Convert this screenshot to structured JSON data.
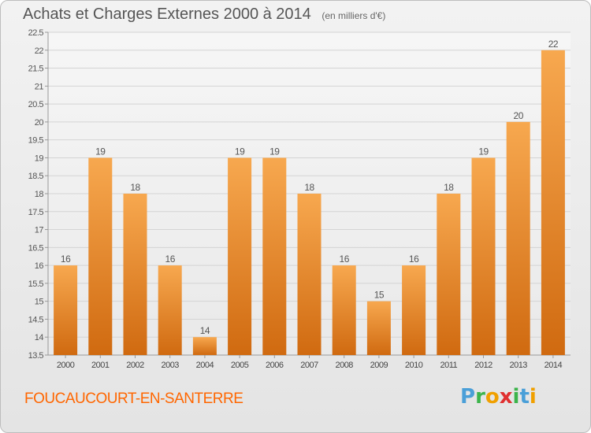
{
  "header": {
    "title": "Achats et Charges Externes 2000 à 2014",
    "unit_note": "(en milliers d'€)"
  },
  "footer": {
    "commune": "FOUCAUCOURT-EN-SANTERRE",
    "brand": [
      "P",
      "r",
      "o",
      "x",
      "i",
      "t",
      "i"
    ],
    "brand_colors": [
      "#4a9fd8",
      "#3cb44b",
      "#f0a000",
      "#e03030",
      "#3cb44b",
      "#4a9fd8",
      "#f0a000"
    ]
  },
  "chart_data": {
    "type": "bar",
    "title": "Achats et Charges Externes 2000 à 2014",
    "subtitle": "(en milliers d'€)",
    "categories": [
      "2000",
      "2001",
      "2002",
      "2003",
      "2004",
      "2005",
      "2006",
      "2007",
      "2008",
      "2009",
      "2010",
      "2011",
      "2012",
      "2013",
      "2014"
    ],
    "values": [
      16,
      19,
      18,
      16,
      14,
      19,
      19,
      18,
      16,
      15,
      16,
      18,
      19,
      20,
      22
    ],
    "labels": [
      "16",
      "19",
      "18",
      "16",
      "14",
      "19",
      "19",
      "18",
      "16",
      "15",
      "16",
      "18",
      "19",
      "20",
      "22"
    ],
    "ylim": [
      13.5,
      22.5
    ],
    "yticks": [
      "13.5",
      "14",
      "14.5",
      "15",
      "15.5",
      "16",
      "16.5",
      "17",
      "17.5",
      "18",
      "18.5",
      "19",
      "19.5",
      "20",
      "20.5",
      "21",
      "21.5",
      "22",
      "22.5"
    ],
    "grid": true,
    "bar_color_top": "#f7a84f",
    "bar_color_bottom": "#d06a10"
  }
}
